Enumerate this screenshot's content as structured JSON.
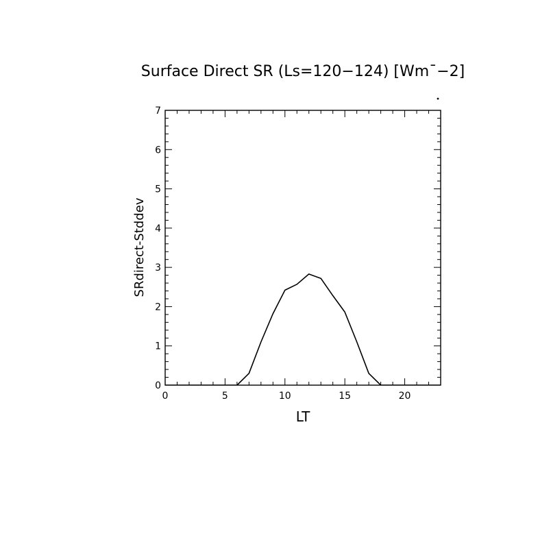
{
  "chart_data": {
    "type": "line",
    "title": "Surface Direct SR (Ls=120-124) [Wm^-2]",
    "title_display": "Surface Direct SR (Ls=120−124) [Wm¯−2]",
    "xlabel": "LT",
    "ylabel": "SRdirect-Stddev",
    "xlim": [
      0,
      23
    ],
    "ylim": [
      0,
      7
    ],
    "xticks": [
      0,
      5,
      10,
      15,
      20
    ],
    "yticks": [
      0,
      1,
      2,
      3,
      4,
      5,
      6,
      7
    ],
    "grid": false,
    "series": [
      {
        "x": [
          0,
          1,
          2,
          3,
          4,
          5,
          6,
          7,
          8,
          9,
          10,
          11,
          12,
          13,
          14,
          15,
          16,
          17,
          18,
          19,
          20,
          21,
          22,
          23
        ],
        "values": [
          0,
          0,
          0,
          0,
          0,
          0,
          0,
          0.3,
          1.1,
          1.82,
          2.42,
          2.57,
          2.83,
          2.72,
          2.28,
          1.86,
          1.1,
          0.3,
          0,
          0,
          0,
          0,
          0,
          0
        ]
      }
    ]
  }
}
